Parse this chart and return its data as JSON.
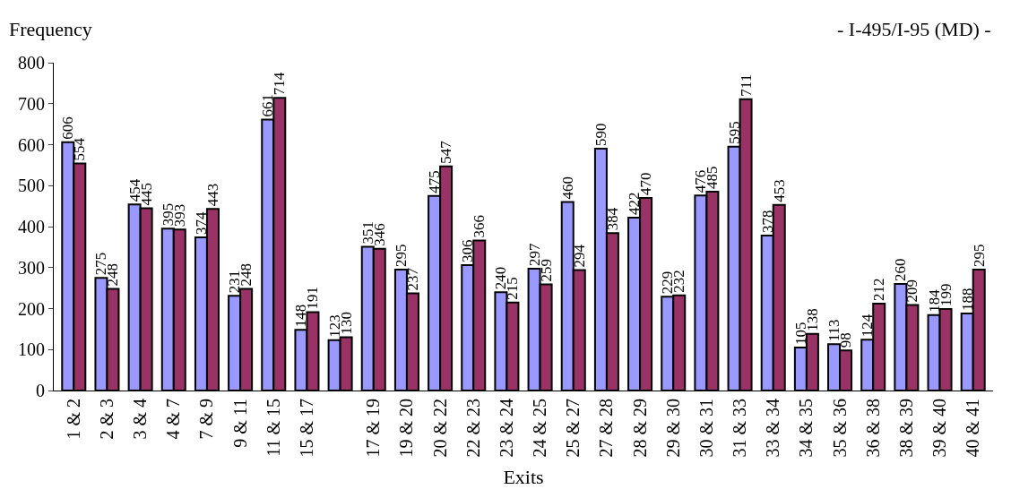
{
  "chart_data": {
    "type": "bar",
    "title": "- I-495/I-95 (MD) -",
    "xlabel": "Exits",
    "ylabel": "Frequency",
    "categories": [
      "1 & 2",
      "2 & 3",
      "3 & 4",
      "4 & 7",
      "7 & 9",
      "9 & 11",
      "11 & 15",
      "15 & 17",
      null,
      "17 & 19",
      "19 & 20",
      "20 & 22",
      "22 & 23",
      "23 & 24",
      "24 & 25",
      "25 & 27",
      "27 & 28",
      "28 & 29",
      "29 & 30",
      "30 & 31",
      "31 & 33",
      "33 & 34",
      "34 & 35",
      "35 & 36",
      "36 & 38",
      "38 & 39",
      "39 & 40",
      "40 & 41"
    ],
    "series": [
      {
        "color": "#9999ff",
        "values": [
          606,
          275,
          454,
          395,
          374,
          231,
          661,
          148,
          123,
          351,
          295,
          475,
          306,
          240,
          297,
          460,
          590,
          422,
          229,
          476,
          595,
          378,
          105,
          113,
          124,
          260,
          184,
          188
        ]
      },
      {
        "color": "#993366",
        "values": [
          554,
          248,
          445,
          393,
          443,
          248,
          714,
          191,
          130,
          346,
          237,
          547,
          366,
          215,
          259,
          294,
          384,
          470,
          232,
          485,
          711,
          453,
          138,
          98,
          212,
          209,
          199,
          295
        ]
      }
    ],
    "ylim": [
      0,
      800
    ],
    "yticks": [
      0,
      100,
      200,
      300,
      400,
      500,
      600,
      700,
      800
    ],
    "data_labels": true
  }
}
